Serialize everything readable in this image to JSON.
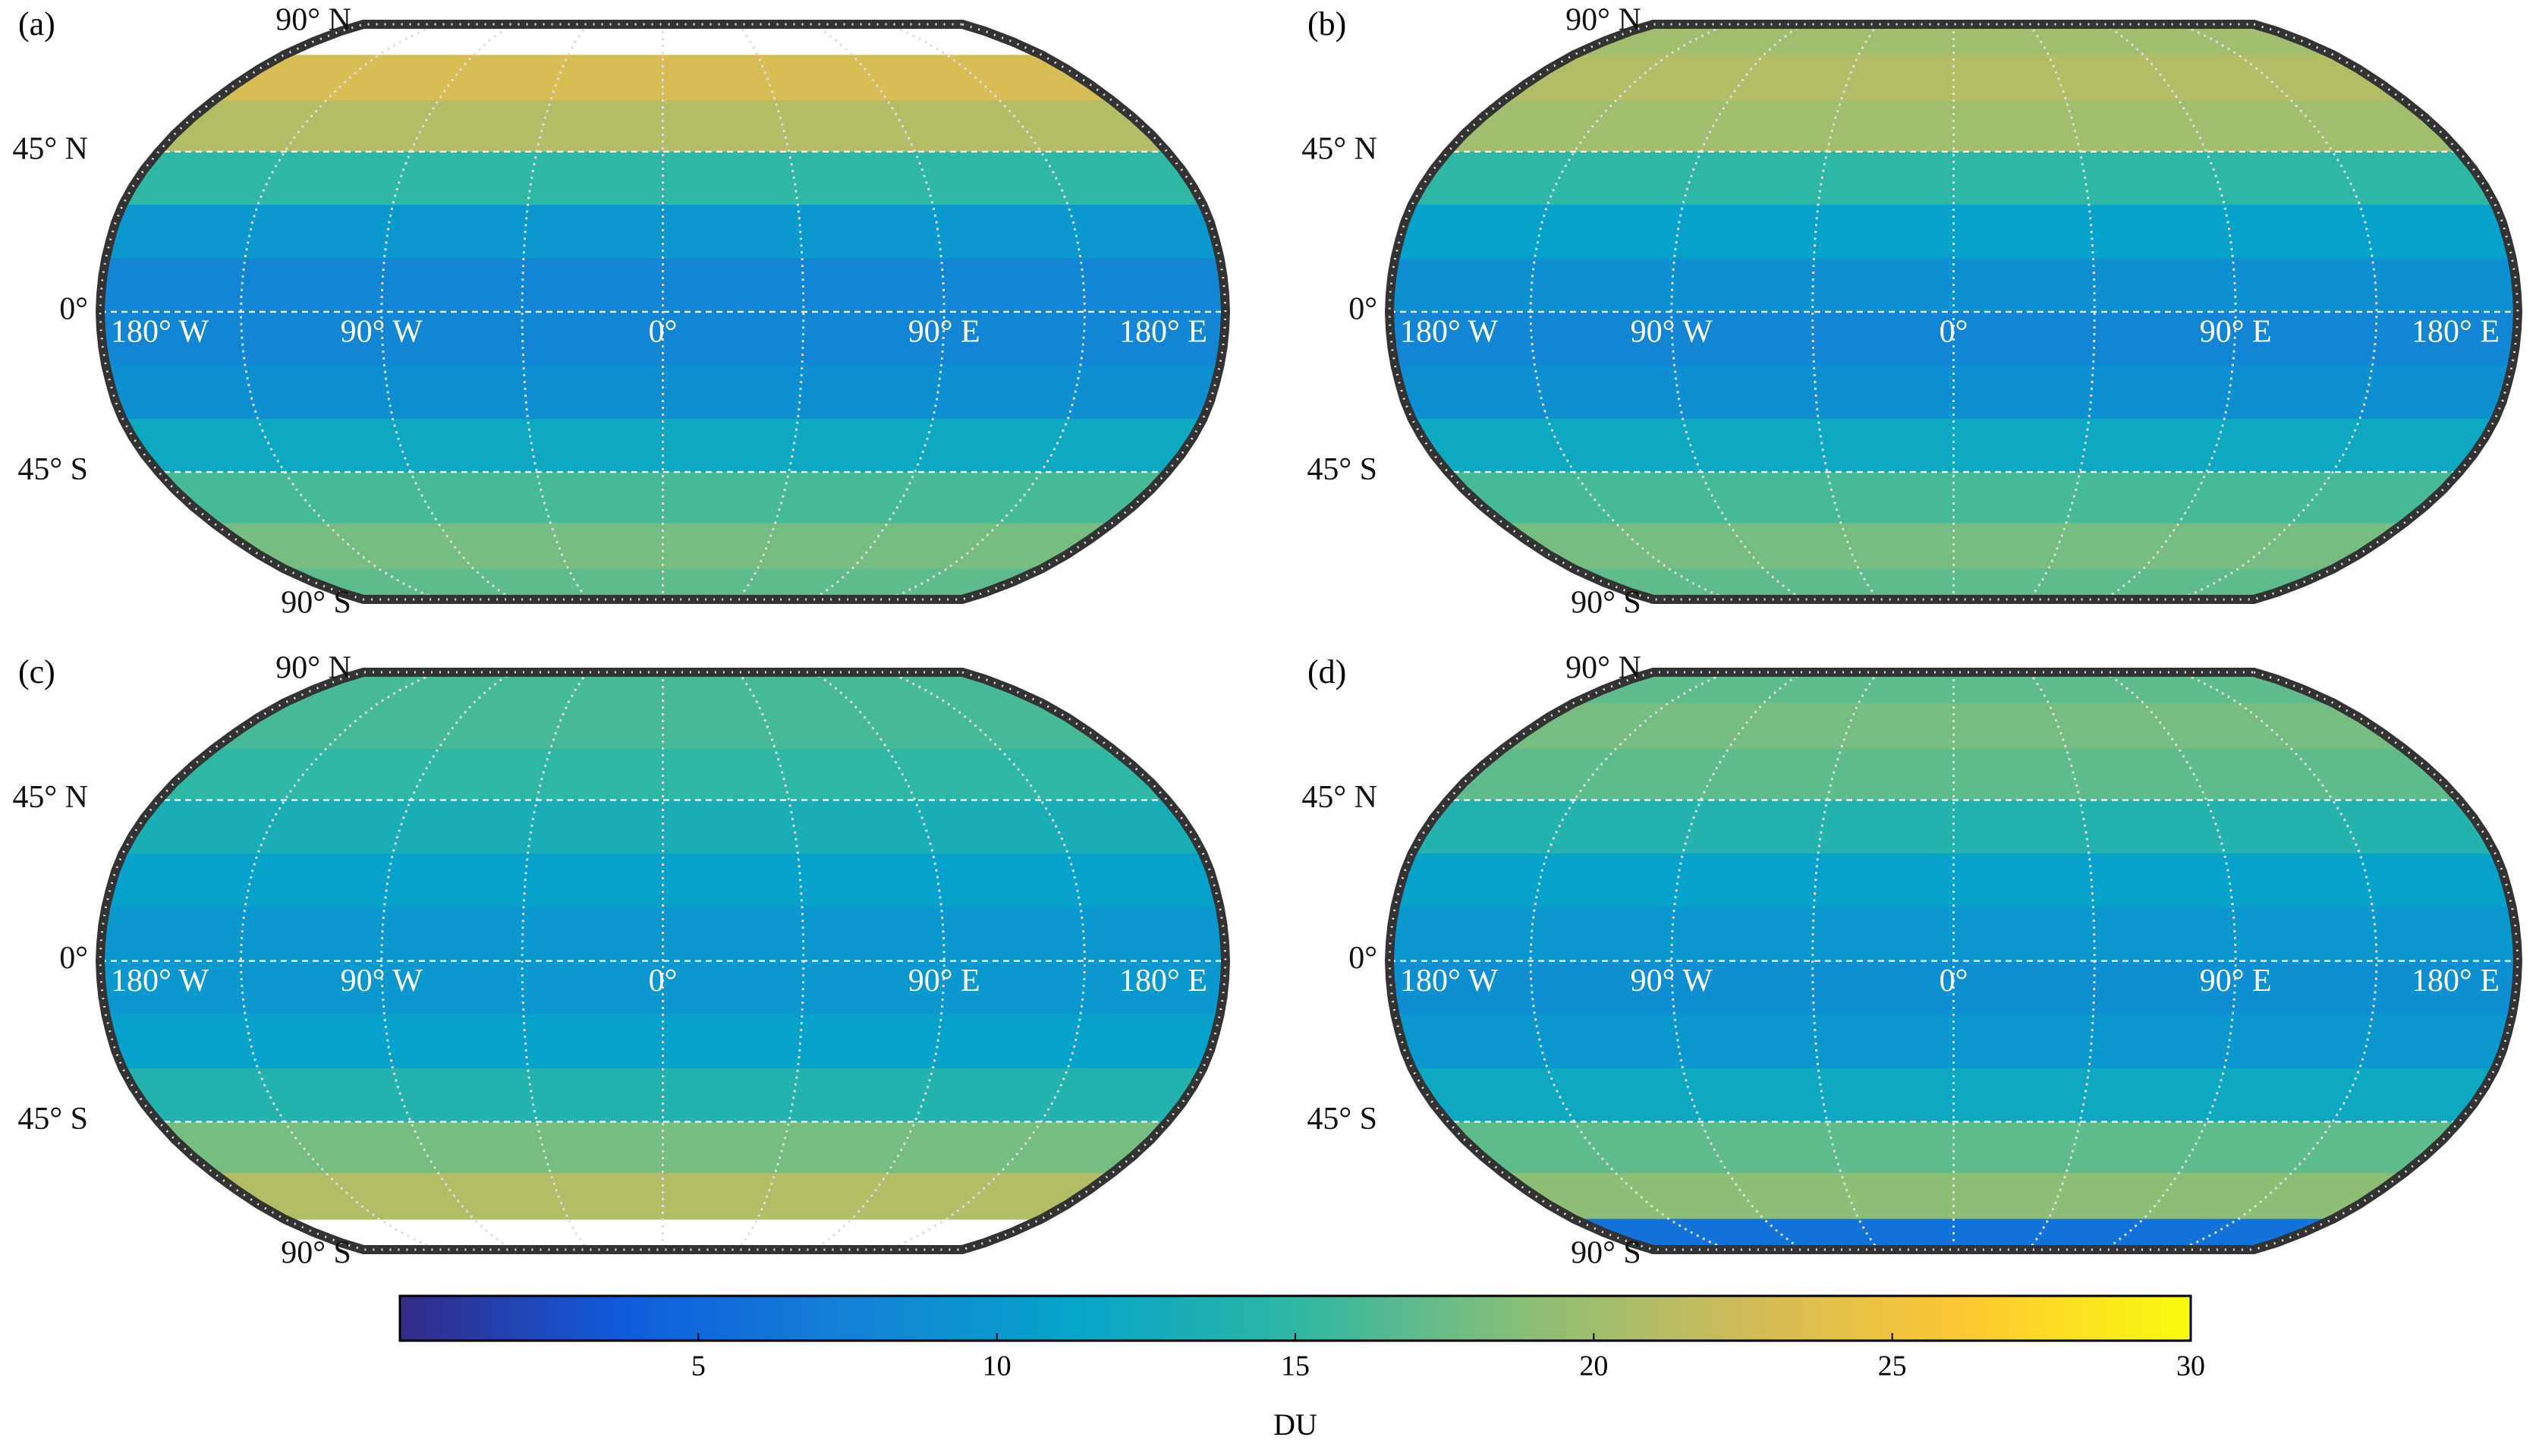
{
  "panels": [
    {
      "label": "(a)",
      "band_lats": [
        82.5,
        67.5,
        52.5,
        37.5,
        22.5,
        7.5,
        -7.5,
        -22.5,
        -37.5,
        -52.5,
        -67.5,
        -82.5
      ],
      "zonal_values": [
        null,
        23,
        21,
        15,
        10,
        8,
        8,
        9,
        12,
        16,
        18,
        17
      ]
    },
    {
      "label": "(b)",
      "band_lats": [
        82.5,
        67.5,
        52.5,
        37.5,
        22.5,
        7.5,
        -7.5,
        -22.5,
        -37.5,
        -52.5,
        -67.5,
        -82.5
      ],
      "zonal_values": [
        20,
        21,
        20,
        15,
        11,
        9,
        8,
        9,
        12,
        16,
        18,
        17
      ]
    },
    {
      "label": "(c)",
      "band_lats": [
        82.5,
        67.5,
        52.5,
        37.5,
        22.5,
        7.5,
        -7.5,
        -22.5,
        -37.5,
        -52.5,
        -67.5,
        -82.5
      ],
      "zonal_values": [
        16,
        16,
        15,
        13,
        11,
        10,
        10,
        11,
        14,
        18,
        21,
        null
      ]
    },
    {
      "label": "(d)",
      "band_lats": [
        82.5,
        67.5,
        52.5,
        37.5,
        22.5,
        7.5,
        -7.5,
        -22.5,
        -37.5,
        -52.5,
        -67.5,
        -82.5
      ],
      "zonal_values": [
        17,
        18,
        17,
        14,
        11,
        10,
        9,
        10,
        12,
        17,
        19,
        6
      ]
    }
  ],
  "lat_labels": [
    {
      "value": 90,
      "label": "90° N"
    },
    {
      "value": 45,
      "label": "45° N"
    },
    {
      "value": 0,
      "label": "0°"
    },
    {
      "value": -45,
      "label": "45° S"
    },
    {
      "value": -90,
      "label": "90° S"
    }
  ],
  "lon_labels": [
    {
      "value": -180,
      "label": "180° W"
    },
    {
      "value": -90,
      "label": "90° W"
    },
    {
      "value": 0,
      "label": "0°"
    },
    {
      "value": 90,
      "label": "90° E"
    },
    {
      "value": 180,
      "label": "180° E"
    }
  ],
  "colorbar": {
    "label": "DU",
    "lim": [
      0,
      30
    ],
    "ticks": [
      5,
      10,
      15,
      20,
      25,
      30
    ],
    "colors": [
      "#352a87",
      "#0f5cdd",
      "#1481d6",
      "#06a4ca",
      "#2eb7a4",
      "#87bf77",
      "#d1bb59",
      "#fec832",
      "#f9fb0e"
    ]
  }
}
